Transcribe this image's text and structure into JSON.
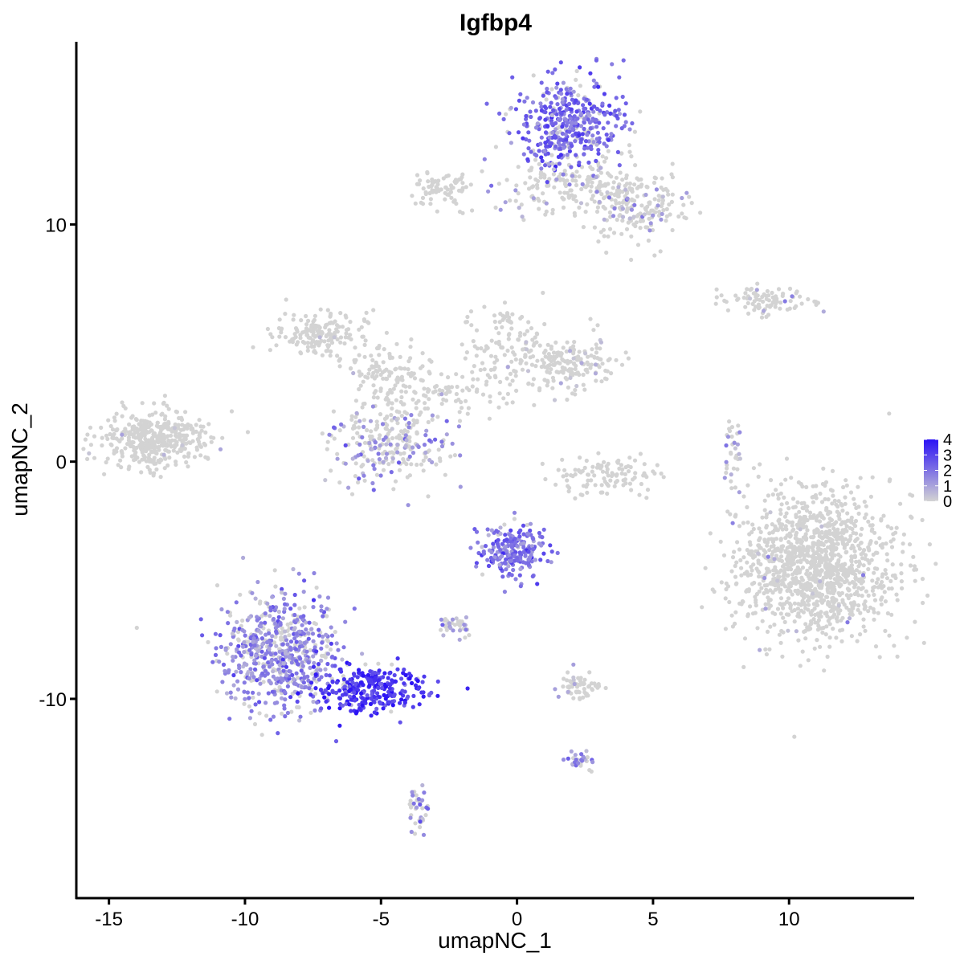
{
  "chart_data": {
    "type": "scatter",
    "title": "Igfbp4",
    "xlabel": "umapNC_1",
    "ylabel": "umapNC_2",
    "xlim": [
      -16.2,
      14.6
    ],
    "ylim": [
      -18.4,
      17.7
    ],
    "x_ticks": [
      -15,
      -10,
      -5,
      0,
      5,
      10
    ],
    "y_ticks": [
      -10,
      0,
      10
    ],
    "x_tick_labels": [
      "-15",
      "-10",
      "-5",
      "0",
      "5",
      "10"
    ],
    "y_tick_labels": [
      "-10",
      "0",
      "10"
    ],
    "grid": false,
    "legend": {
      "position": "right",
      "type": "colorbar",
      "breaks": [
        4,
        3,
        2,
        1,
        0
      ],
      "labels": [
        "4",
        "3",
        "2",
        "1",
        "0"
      ],
      "low_color": "#d3d3d3",
      "high_color": "#2b12f5"
    },
    "point_color_low": "#d3d3d3",
    "point_color_high": "#2b12f5",
    "clusters": [
      {
        "cx": -13.3,
        "cy": 0.9,
        "sx": 1.0,
        "sy": 0.6,
        "n": 420,
        "expr_mean": 0.0,
        "expr_frac": 0.01
      },
      {
        "cx": -7.3,
        "cy": 5.4,
        "sx": 0.8,
        "sy": 0.5,
        "n": 170,
        "expr_mean": 0.2,
        "expr_frac": 0.01
      },
      {
        "cx": -4.8,
        "cy": 3.9,
        "sx": 0.9,
        "sy": 0.5,
        "n": 90,
        "expr_mean": 0.2,
        "expr_frac": 0.01
      },
      {
        "cx": -3.5,
        "cy": 2.8,
        "sx": 1.4,
        "sy": 0.6,
        "n": 110,
        "expr_mean": 0.2,
        "expr_frac": 0.02
      },
      {
        "cx": -0.3,
        "cy": 4.6,
        "sx": 0.9,
        "sy": 1.0,
        "n": 130,
        "expr_mean": 0.2,
        "expr_frac": 0.04
      },
      {
        "cx": 2.0,
        "cy": 4.1,
        "sx": 0.8,
        "sy": 0.5,
        "n": 160,
        "expr_mean": 0.3,
        "expr_frac": 0.05
      },
      {
        "cx": -4.7,
        "cy": 0.6,
        "sx": 1.1,
        "sy": 0.8,
        "n": 240,
        "expr_mean": 1.4,
        "expr_frac": 0.35
      },
      {
        "cx": 3.3,
        "cy": -0.6,
        "sx": 1.0,
        "sy": 0.4,
        "n": 110,
        "expr_mean": 0.0,
        "expr_frac": 0.0
      },
      {
        "cx": 8.0,
        "cy": 0.2,
        "sx": 0.2,
        "sy": 0.8,
        "n": 35,
        "expr_mean": 1.2,
        "expr_frac": 0.3
      },
      {
        "cx": 11.0,
        "cy": -4.4,
        "sx": 1.4,
        "sy": 1.5,
        "n": 1300,
        "expr_mean": 0.8,
        "expr_frac": 0.015
      },
      {
        "cx": 1.9,
        "cy": 14.3,
        "sx": 1.0,
        "sy": 0.9,
        "n": 430,
        "expr_mean": 2.2,
        "expr_frac": 0.85
      },
      {
        "cx": 2.1,
        "cy": 11.6,
        "sx": 1.4,
        "sy": 0.6,
        "n": 200,
        "expr_mean": 1.0,
        "expr_frac": 0.12
      },
      {
        "cx": 4.5,
        "cy": 10.7,
        "sx": 0.9,
        "sy": 0.8,
        "n": 170,
        "expr_mean": 1.2,
        "expr_frac": 0.2
      },
      {
        "cx": -2.7,
        "cy": 11.4,
        "sx": 0.6,
        "sy": 0.4,
        "n": 80,
        "expr_mean": 0.0,
        "expr_frac": 0.0
      },
      {
        "cx": 9.2,
        "cy": 6.8,
        "sx": 0.8,
        "sy": 0.3,
        "n": 90,
        "expr_mean": 1.2,
        "expr_frac": 0.12
      },
      {
        "cx": -0.2,
        "cy": -3.8,
        "sx": 0.6,
        "sy": 0.6,
        "n": 220,
        "expr_mean": 2.0,
        "expr_frac": 0.95
      },
      {
        "cx": -8.7,
        "cy": -8.0,
        "sx": 1.1,
        "sy": 1.3,
        "n": 650,
        "expr_mean": 1.6,
        "expr_frac": 0.7
      },
      {
        "cx": -5.4,
        "cy": -9.6,
        "sx": 1.0,
        "sy": 0.45,
        "n": 280,
        "expr_mean": 3.2,
        "expr_frac": 0.97
      },
      {
        "cx": -2.3,
        "cy": -6.9,
        "sx": 0.3,
        "sy": 0.2,
        "n": 40,
        "expr_mean": 1.0,
        "expr_frac": 0.3
      },
      {
        "cx": 2.3,
        "cy": -9.5,
        "sx": 0.4,
        "sy": 0.25,
        "n": 60,
        "expr_mean": 0.8,
        "expr_frac": 0.1
      },
      {
        "cx": 2.3,
        "cy": -12.6,
        "sx": 0.3,
        "sy": 0.2,
        "n": 30,
        "expr_mean": 1.5,
        "expr_frac": 0.7
      },
      {
        "cx": -3.6,
        "cy": -14.6,
        "sx": 0.2,
        "sy": 0.5,
        "n": 40,
        "expr_mean": 1.5,
        "expr_frac": 0.5
      },
      {
        "cx": -0.5,
        "cy": 6.1,
        "sx": 0.2,
        "sy": 0.2,
        "n": 15,
        "expr_mean": 0.0,
        "expr_frac": 0.0
      }
    ]
  }
}
